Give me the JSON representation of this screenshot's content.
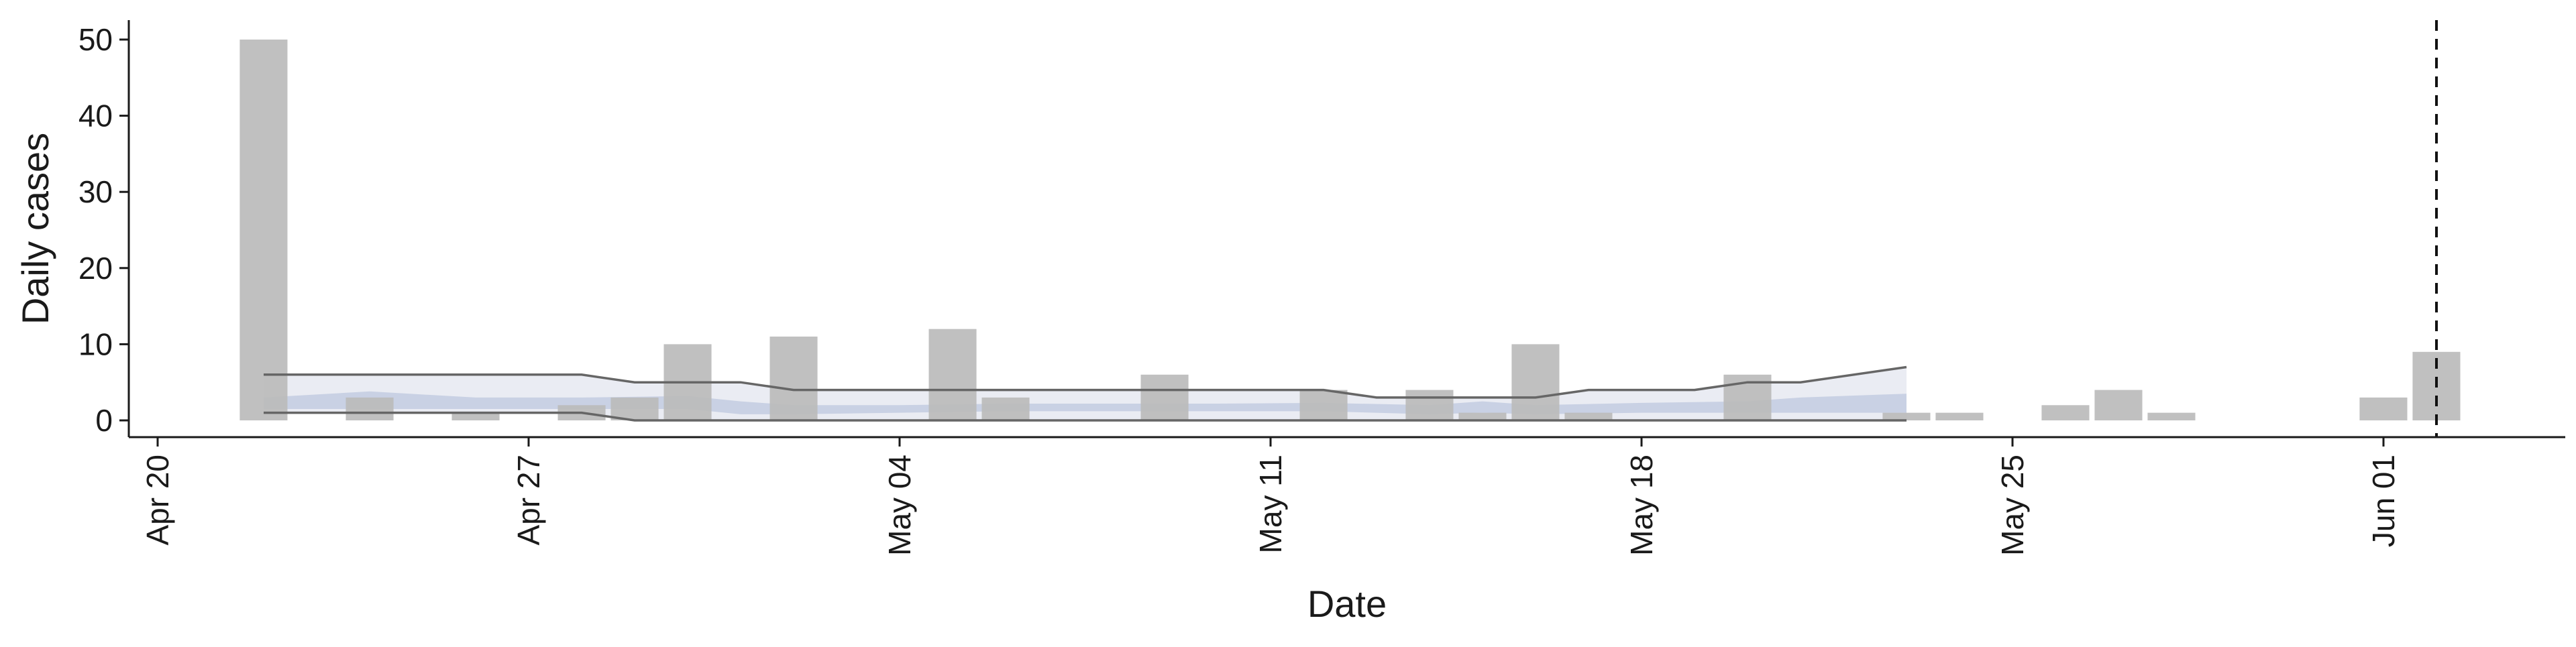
{
  "chart_data": {
    "type": "bar",
    "xlabel": "Date",
    "ylabel": "Daily cases",
    "ylim": [
      0,
      52
    ],
    "y_ticks": [
      0,
      10,
      20,
      30,
      40,
      50
    ],
    "x_range": [
      "2020-04-20",
      "2020-06-04"
    ],
    "x_ticks": [
      {
        "date": "2020-04-20",
        "label": "Apr 20"
      },
      {
        "date": "2020-04-27",
        "label": "Apr 27"
      },
      {
        "date": "2020-05-04",
        "label": "May 04"
      },
      {
        "date": "2020-05-11",
        "label": "May 11"
      },
      {
        "date": "2020-05-18",
        "label": "May 18"
      },
      {
        "date": "2020-05-25",
        "label": "May 25"
      },
      {
        "date": "2020-06-01",
        "label": "Jun 01"
      }
    ],
    "bars": [
      {
        "date": "2020-04-22",
        "value": 50
      },
      {
        "date": "2020-04-24",
        "value": 3
      },
      {
        "date": "2020-04-26",
        "value": 1
      },
      {
        "date": "2020-04-28",
        "value": 2
      },
      {
        "date": "2020-04-29",
        "value": 3
      },
      {
        "date": "2020-04-30",
        "value": 10
      },
      {
        "date": "2020-05-02",
        "value": 11
      },
      {
        "date": "2020-05-05",
        "value": 12
      },
      {
        "date": "2020-05-06",
        "value": 3
      },
      {
        "date": "2020-05-09",
        "value": 6
      },
      {
        "date": "2020-05-12",
        "value": 4
      },
      {
        "date": "2020-05-14",
        "value": 4
      },
      {
        "date": "2020-05-15",
        "value": 1
      },
      {
        "date": "2020-05-16",
        "value": 10
      },
      {
        "date": "2020-05-17",
        "value": 1
      },
      {
        "date": "2020-05-20",
        "value": 6
      },
      {
        "date": "2020-05-23",
        "value": 1
      },
      {
        "date": "2020-05-24",
        "value": 1
      },
      {
        "date": "2020-05-26",
        "value": 2
      },
      {
        "date": "2020-05-27",
        "value": 4
      },
      {
        "date": "2020-05-28",
        "value": 1
      },
      {
        "date": "2020-06-01",
        "value": 3
      },
      {
        "date": "2020-06-02",
        "value": 9
      }
    ],
    "outer_band": {
      "x": [
        "2020-04-22",
        "2020-04-28",
        "2020-04-29",
        "2020-05-01",
        "2020-05-02",
        "2020-05-12",
        "2020-05-13",
        "2020-05-16",
        "2020-05-17",
        "2020-05-19",
        "2020-05-20",
        "2020-05-21",
        "2020-05-23"
      ],
      "lower": [
        1,
        1,
        0,
        0,
        0,
        0,
        0,
        0,
        0,
        0,
        0,
        0,
        0
      ],
      "upper": [
        6,
        6,
        5,
        5,
        4,
        4,
        3,
        3,
        4,
        4,
        5,
        5,
        7
      ]
    },
    "inner_band": {
      "x": [
        "2020-04-22",
        "2020-04-24",
        "2020-04-26",
        "2020-04-28",
        "2020-04-30",
        "2020-05-01",
        "2020-05-02",
        "2020-05-04",
        "2020-05-06",
        "2020-05-10",
        "2020-05-12",
        "2020-05-14",
        "2020-05-15",
        "2020-05-16",
        "2020-05-18",
        "2020-05-20",
        "2020-05-21",
        "2020-05-23"
      ],
      "lower": [
        1.5,
        1.5,
        1.5,
        1.5,
        1.5,
        0.8,
        0.8,
        1,
        1.2,
        1.2,
        1.2,
        0.8,
        1,
        0.8,
        1,
        1,
        1,
        1
      ],
      "upper": [
        3,
        3.8,
        3,
        3,
        3.2,
        2.5,
        2,
        2,
        2.2,
        2.2,
        2.3,
        2,
        2.5,
        2,
        2.3,
        2.5,
        3,
        3.5
      ]
    },
    "vline_date": "2020-06-02",
    "colors": {
      "bar": "#bbbbbb",
      "outer_band": "#e6e9f1",
      "inner_band": "#c3cce0",
      "band_edge": "#666666",
      "vline": "#111111"
    }
  }
}
